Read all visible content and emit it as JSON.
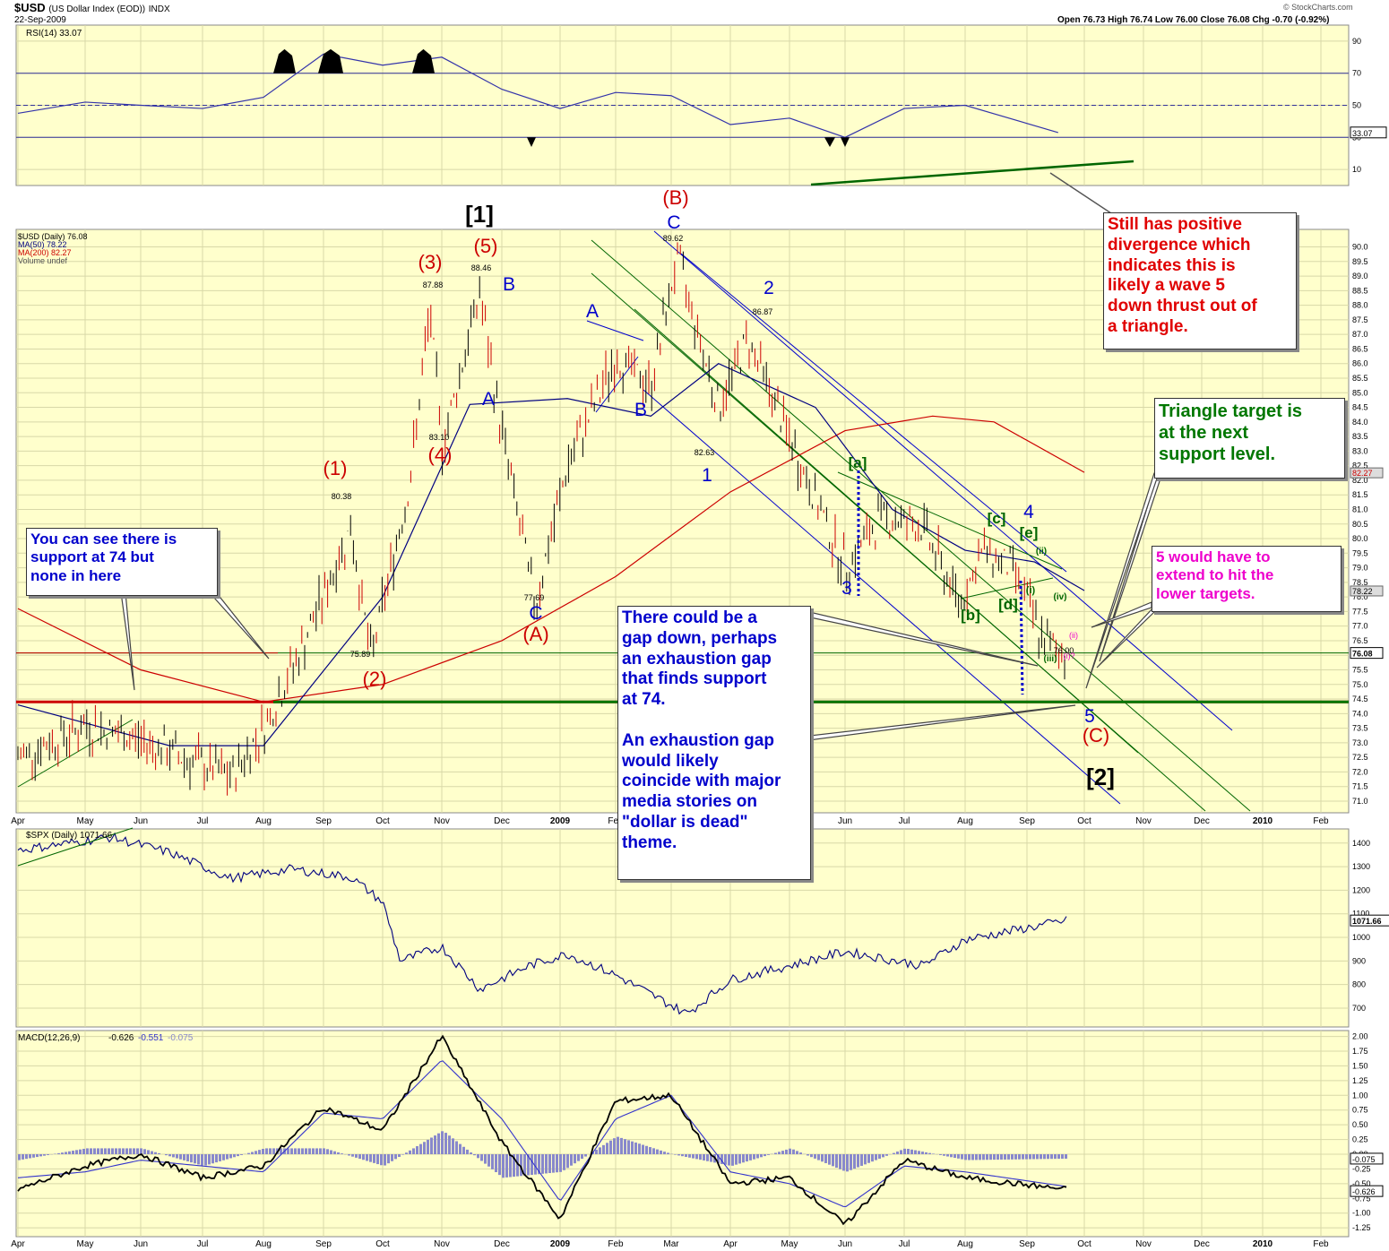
{
  "header": {
    "symbol": "$USD",
    "name": "(US Dollar Index (EOD))",
    "exchange": "INDX",
    "date": "22-Sep-2009",
    "ohlc": "Open 76.73  High 76.74  Low 76.00  Close 76.08  Chg -0.70 (-0.92%)",
    "brand": "© StockCharts.com"
  },
  "colors": {
    "background": "#ffffcc",
    "grid": "#d8d8a8",
    "price": "#cc0000",
    "ma50": "#000080",
    "ma200": "#cc0000",
    "rsi": "#3333aa",
    "spx": "#000080",
    "macd": "#000000",
    "signal": "#3333cc",
    "hist": "#8888cc",
    "green": "#006600",
    "blue": "#0000cc",
    "red": "#cc0000",
    "magenta": "#ee00cc"
  },
  "x_ticks": {
    "labels": [
      "Apr",
      "May",
      "Jun",
      "Jul",
      "Aug",
      "Sep",
      "Oct",
      "Nov",
      "Dec",
      "2009",
      "Feb",
      "Mar",
      "Apr",
      "May",
      "Jun",
      "Jul",
      "Aug",
      "Sep",
      "Oct",
      "Nov",
      "Dec",
      "2010",
      "Feb"
    ]
  },
  "chart_data": [
    {
      "type": "line",
      "panel": "RSI",
      "legend": "RSI(14) 33.07",
      "last_value": "33.07",
      "ylim": [
        0,
        100
      ],
      "y_ticks": [
        "90",
        "70",
        "50",
        "30",
        "10"
      ],
      "reference_levels": [
        70,
        50,
        30
      ],
      "x": [
        "2008-04",
        "2008-05",
        "2008-06",
        "2008-07",
        "2008-08",
        "2008-09",
        "2008-10",
        "2008-11",
        "2008-12",
        "2009-01",
        "2009-02",
        "2009-03",
        "2009-04",
        "2009-05",
        "2009-06",
        "2009-07",
        "2009-08",
        "2009-09"
      ],
      "values": [
        45,
        52,
        50,
        48,
        55,
        82,
        75,
        80,
        60,
        48,
        58,
        56,
        38,
        42,
        30,
        48,
        50,
        33
      ]
    },
    {
      "type": "line",
      "panel": "price",
      "legend": [
        "$USD (Daily) 76.08",
        "MA(50) 78.22",
        "MA(200) 82.27",
        "Volume undef"
      ],
      "last_price": "76.08",
      "ma50_last": "78.22",
      "ma200_last": "82.27",
      "ylim": [
        70.6,
        90.6
      ],
      "y_ticks": [
        "90.0",
        "89.5",
        "89.0",
        "88.5",
        "88.0",
        "87.5",
        "87.0",
        "86.5",
        "86.0",
        "85.5",
        "85.0",
        "84.5",
        "84.0",
        "83.5",
        "83.0",
        "82.5",
        "82.0",
        "81.5",
        "81.0",
        "80.5",
        "80.0",
        "79.5",
        "79.0",
        "78.5",
        "78.0",
        "77.5",
        "77.0",
        "76.5",
        "76.0",
        "75.5",
        "75.0",
        "74.5",
        "74.0",
        "73.5",
        "73.0",
        "72.5",
        "72.0",
        "71.5",
        "71.0"
      ],
      "series": [
        {
          "name": "$USD",
          "x": [
            "2008-04-01",
            "2008-05-01",
            "2008-06-01",
            "2008-07-15",
            "2008-08-01",
            "2008-08-20",
            "2008-09-15",
            "2008-09-25",
            "2008-10-15",
            "2008-10-25",
            "2008-11-01",
            "2008-11-20",
            "2008-11-28",
            "2008-12-18",
            "2009-01-05",
            "2009-02-01",
            "2009-02-20",
            "2009-03-04",
            "2009-03-25",
            "2009-04-10",
            "2009-05-05",
            "2009-06-01",
            "2009-06-20",
            "2009-07-10",
            "2009-07-28",
            "2009-08-10",
            "2009-08-25",
            "2009-09-10",
            "2009-09-22"
          ],
          "values": [
            72.5,
            73.6,
            73.1,
            71.8,
            73.5,
            76.2,
            80.38,
            75.89,
            82.0,
            87.88,
            83.1,
            88.46,
            84.8,
            77.69,
            82.5,
            86.2,
            85.2,
            89.62,
            84.5,
            86.87,
            82.8,
            79.0,
            80.8,
            80.4,
            77.8,
            79.6,
            78.9,
            76.4,
            76.08
          ]
        },
        {
          "name": "MA(50)",
          "x": [
            "2008-04-01",
            "2008-06-15",
            "2008-08-01",
            "2008-10-01",
            "2008-11-15",
            "2009-01-05",
            "2009-02-20",
            "2009-03-25",
            "2009-05-15",
            "2009-06-25",
            "2009-08-01",
            "2009-09-05",
            "2009-10-01"
          ],
          "values": [
            74.3,
            72.9,
            72.9,
            78.0,
            84.6,
            84.8,
            84.2,
            86.0,
            84.5,
            81.0,
            79.6,
            79.2,
            78.22
          ]
        },
        {
          "name": "MA(200)",
          "x": [
            "2008-04-01",
            "2008-06-01",
            "2008-08-01",
            "2008-10-01",
            "2008-12-01",
            "2009-02-01",
            "2009-04-01",
            "2009-06-01",
            "2009-07-15",
            "2009-08-15",
            "2009-10-01"
          ],
          "values": [
            77.6,
            75.5,
            74.4,
            75.0,
            76.5,
            78.7,
            81.6,
            83.7,
            84.2,
            84.0,
            82.27
          ]
        }
      ],
      "annotations": {
        "data_labels": [
          "80.38",
          "75.89",
          "87.88",
          "83.10",
          "88.46",
          "77.69",
          "89.62",
          "82.63",
          "86.87",
          "76.00"
        ],
        "support_level": 74.4,
        "current_level": 76.08,
        "waves": {
          "red": [
            "(1)",
            "(2)",
            "(3)",
            "(4)",
            "(5)",
            "(A)",
            "(B)",
            "(C)"
          ],
          "black": [
            "[1]",
            "[2]"
          ],
          "blue": [
            "A",
            "B",
            "C",
            "A",
            "B",
            "C",
            "1",
            "2",
            "3",
            "4",
            "5"
          ],
          "green": [
            "[a]",
            "[b]",
            "[c]",
            "[d]",
            "[e]",
            "(i)",
            "(ii)",
            "(iii)",
            "(iv)"
          ],
          "magenta": [
            "(ii)",
            "(i)?"
          ]
        }
      },
      "notes": [
        "Still has positive\ndivergence which\nindicates this is\nlikely a wave 5\ndown thrust out of\na triangle.",
        "Triangle target is\nat the next\nsupport level.",
        "5 would have to\nextend to hit the\nlower targets.",
        "You can see there is\nsupport at 74 but\nnone in here",
        "There could be a\ngap down, perhaps\nan exhaustion gap\nthat finds support\nat 74.\n\nAn exhaustion gap\nwould likely\ncoincide with major\nmedia stories on\n\"dollar is dead\"\ntheme."
      ]
    },
    {
      "type": "line",
      "panel": "SPX",
      "legend": "$SPX (Daily) 1071.66",
      "last_value": "1071.66",
      "ylim": [
        620,
        1460
      ],
      "y_ticks": [
        "1400",
        "1300",
        "1200",
        "1100",
        "1000",
        "900",
        "800",
        "700"
      ],
      "x": [
        "2008-04-01",
        "2008-05-15",
        "2008-06-15",
        "2008-07-15",
        "2008-08-15",
        "2008-09-15",
        "2008-10-01",
        "2008-10-10",
        "2008-11-01",
        "2008-11-20",
        "2008-12-15",
        "2009-01-05",
        "2009-02-01",
        "2009-03-09",
        "2009-04-01",
        "2009-05-01",
        "2009-06-01",
        "2009-07-10",
        "2009-08-01",
        "2009-08-25",
        "2009-09-22"
      ],
      "values": [
        1370,
        1425,
        1360,
        1250,
        1290,
        1255,
        1150,
        900,
        960,
        780,
        880,
        930,
        840,
        676,
        820,
        880,
        940,
        880,
        990,
        1030,
        1071.66
      ]
    },
    {
      "type": "line",
      "panel": "MACD",
      "legend": [
        "MACD(12,26,9)",
        "-0.626",
        "-0.551",
        "-0.075"
      ],
      "ylim": [
        -1.4,
        2.1
      ],
      "y_ticks": [
        "2.00",
        "1.75",
        "1.50",
        "1.25",
        "1.00",
        "0.75",
        "0.50",
        "0.25",
        "0.00",
        "-0.25",
        "-0.50",
        "-0.75",
        "-1.00",
        "-1.25"
      ],
      "last_tags": [
        "-0.075",
        "-0.626"
      ],
      "x": [
        "2008-04",
        "2008-05",
        "2008-06",
        "2008-07",
        "2008-08",
        "2008-09",
        "2008-10",
        "2008-11",
        "2008-12",
        "2009-01",
        "2009-02",
        "2009-03",
        "2009-04",
        "2009-05",
        "2009-06",
        "2009-07",
        "2009-08",
        "2009-09"
      ],
      "values": [
        -0.6,
        -0.2,
        0.0,
        -0.4,
        -0.2,
        0.8,
        0.4,
        2.0,
        0.2,
        -1.1,
        0.9,
        1.0,
        -0.5,
        -0.4,
        -1.2,
        -0.1,
        -0.4,
        -0.6
      ],
      "signal": [
        -0.4,
        -0.3,
        -0.1,
        -0.2,
        -0.3,
        0.7,
        0.6,
        1.6,
        0.6,
        -0.8,
        0.6,
        1.0,
        -0.3,
        -0.5,
        -0.9,
        -0.2,
        -0.3,
        -0.55
      ],
      "histogram": [
        -0.1,
        0.1,
        0.1,
        -0.2,
        0.1,
        0.1,
        -0.2,
        0.4,
        -0.4,
        -0.3,
        0.3,
        0.0,
        -0.2,
        0.1,
        -0.3,
        0.1,
        -0.1,
        -0.075
      ]
    }
  ]
}
